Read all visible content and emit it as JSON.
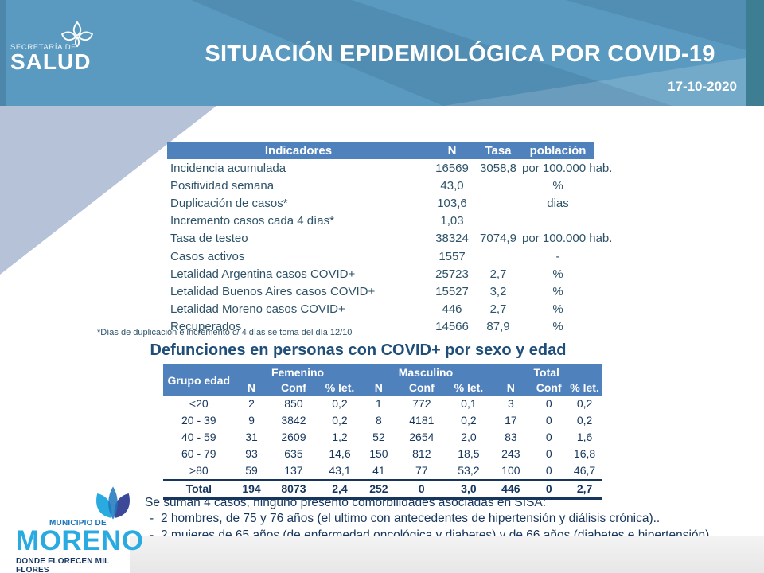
{
  "slide": {
    "title": "SITUACIÓN EPIDEMIOLÓGICA POR COVID-19",
    "date": "17-10-2020"
  },
  "salud_logo": {
    "line_small": "SECRETARÍA DE",
    "line_big": "SALUD"
  },
  "indicators_table": {
    "headers": [
      "Indicadores",
      "N",
      "Tasa",
      "población"
    ],
    "rows": [
      [
        "Incidencia acumulada",
        "16569",
        "3058,8",
        "por 100.000 hab."
      ],
      [
        "Positividad semana",
        "43,0",
        "",
        "%"
      ],
      [
        "Duplicación de casos*",
        "103,6",
        "",
        "dias"
      ],
      [
        "Incremento casos cada 4 días*",
        "1,03",
        "",
        ""
      ],
      [
        "Tasa de testeo",
        "38324",
        "7074,9",
        "por 100.000 hab."
      ],
      [
        "Casos activos",
        "1557",
        "",
        "-"
      ],
      [
        "Letalidad Argentina casos COVID+",
        "25723",
        "2,7",
        "%"
      ],
      [
        "Letalidad Buenos Aires casos COVID+",
        "15527",
        "3,2",
        "%"
      ],
      [
        "Letalidad Moreno casos COVID+",
        "446",
        "2,7",
        "%"
      ],
      [
        "Recuperados",
        "14566",
        "87,9",
        "%"
      ]
    ]
  },
  "footnote": "*Días de duplicación e incremento c/ 4 días se toma del día 12/10",
  "deaths_table": {
    "title": "Defunciones en personas con COVID+ por sexo y edad",
    "row_header": "Grupo edad",
    "groups": [
      "Femenino",
      "Masculino",
      "Total"
    ],
    "sub_headers": [
      "N",
      "Conf",
      "% let."
    ],
    "rows": [
      [
        "<20",
        "2",
        "850",
        "0,2",
        "1",
        "772",
        "0,1",
        "3",
        "0",
        "0,2"
      ],
      [
        "20 - 39",
        "9",
        "3842",
        "0,2",
        "8",
        "4181",
        "0,2",
        "17",
        "0",
        "0,2"
      ],
      [
        "40 - 59",
        "31",
        "2609",
        "1,2",
        "52",
        "2654",
        "2,0",
        "83",
        "0",
        "1,6"
      ],
      [
        "60 - 79",
        "93",
        "635",
        "14,6",
        "150",
        "812",
        "18,5",
        "243",
        "0",
        "16,8"
      ],
      [
        ">80",
        "59",
        "137",
        "43,1",
        "41",
        "77",
        "53,2",
        "100",
        "0",
        "46,7"
      ],
      [
        "Total",
        "194",
        "8073",
        "2,4",
        "252",
        "0",
        "3,0",
        "446",
        "0",
        "2,7"
      ]
    ]
  },
  "notes": {
    "intro": "Se suman 4 casos, ninguno presentó comorbilidades  asociadas en SISA:",
    "bullets": [
      "2 hombres, de 75 y 76 años (el ultimo con antecedentes de hipertensión y diálisis crónica)..",
      "2 mujeres de 65 años.(de enfermedad oncológica y diabetes) y de 66 años (diabetes e hipertensión)"
    ],
    "dash": "-"
  },
  "moreno_logo": {
    "line_small": "MUNICIPIO DE",
    "line_big": "MORENO",
    "tagline": "DONDE FLORECEN MIL FLORES"
  },
  "colors": {
    "header_blue": "#5b9ac0",
    "header_teal_bar": "#3d7e93",
    "table_header_blue": "#4f81bd",
    "indicators_text": "#2e5368",
    "deaths_text": "#17365d",
    "section_title_blue": "#1f4e79",
    "periwinkle_triangle": "#b5c2d8",
    "moreno_cyan": "#29abe2",
    "moreno_blue": "#1b75bc",
    "moreno_navy": "#14355f"
  }
}
